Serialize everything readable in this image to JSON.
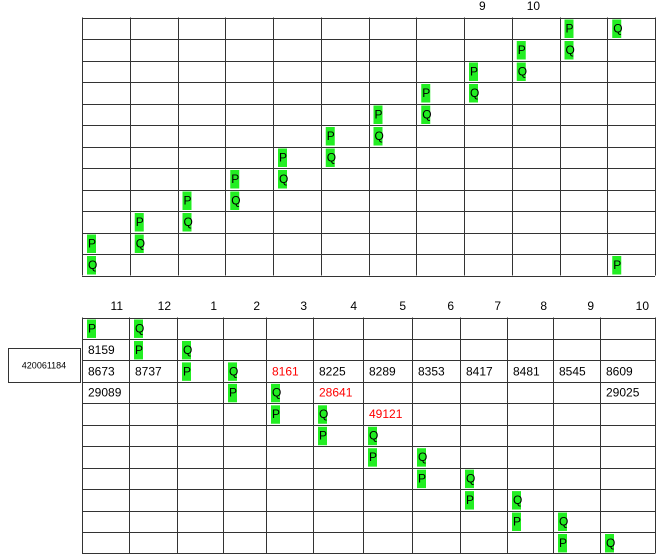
{
  "side_label": "420061184",
  "highlight_color": "#22ee22",
  "top": {
    "header": [
      null,
      null,
      null,
      null,
      null,
      null,
      null,
      null,
      "9",
      "10",
      null,
      null
    ],
    "rows": [
      [
        null,
        null,
        null,
        null,
        null,
        null,
        null,
        null,
        null,
        null,
        {
          "text": "P",
          "hl": true
        },
        {
          "text": "Q",
          "hl": true
        }
      ],
      [
        null,
        null,
        null,
        null,
        null,
        null,
        null,
        null,
        null,
        {
          "text": "P",
          "hl": true
        },
        {
          "text": "Q",
          "hl": true
        },
        null
      ],
      [
        null,
        null,
        null,
        null,
        null,
        null,
        null,
        null,
        {
          "text": "P",
          "hl": true
        },
        {
          "text": "Q",
          "hl": true
        },
        null,
        null
      ],
      [
        null,
        null,
        null,
        null,
        null,
        null,
        null,
        {
          "text": "P",
          "hl": true
        },
        {
          "text": "Q",
          "hl": true
        },
        null,
        null,
        null
      ],
      [
        null,
        null,
        null,
        null,
        null,
        null,
        {
          "text": "P",
          "hl": true
        },
        {
          "text": "Q",
          "hl": true
        },
        null,
        null,
        null,
        null
      ],
      [
        null,
        null,
        null,
        null,
        null,
        {
          "text": "P",
          "hl": true
        },
        {
          "text": "Q",
          "hl": true
        },
        null,
        null,
        null,
        null,
        null
      ],
      [
        null,
        null,
        null,
        null,
        {
          "text": "P",
          "hl": true
        },
        {
          "text": "Q",
          "hl": true
        },
        null,
        null,
        null,
        null,
        null,
        null
      ],
      [
        null,
        null,
        null,
        {
          "text": "P",
          "hl": true
        },
        {
          "text": "Q",
          "hl": true
        },
        null,
        null,
        null,
        null,
        null,
        null,
        null
      ],
      [
        null,
        null,
        {
          "text": "P",
          "hl": true
        },
        {
          "text": "Q",
          "hl": true
        },
        null,
        null,
        null,
        null,
        null,
        null,
        null,
        null
      ],
      [
        null,
        {
          "text": "P",
          "hl": true
        },
        {
          "text": "Q",
          "hl": true
        },
        null,
        null,
        null,
        null,
        null,
        null,
        null,
        null,
        null
      ],
      [
        {
          "text": "P",
          "hl": true
        },
        {
          "text": "Q",
          "hl": true
        },
        null,
        null,
        null,
        null,
        null,
        null,
        null,
        null,
        null,
        null
      ],
      [
        {
          "text": "Q",
          "hl": true
        },
        null,
        null,
        null,
        null,
        null,
        null,
        null,
        null,
        null,
        null,
        {
          "text": "P",
          "hl": true
        }
      ]
    ]
  },
  "bottom": {
    "header": [
      "11",
      "12",
      "1",
      "2",
      "3",
      "4",
      "5",
      "6",
      "7",
      "8",
      "9",
      "10"
    ],
    "rows": [
      [
        {
          "text": "P",
          "hl": true
        },
        {
          "text": "Q",
          "hl": true
        },
        null,
        null,
        null,
        null,
        null,
        null,
        null,
        null,
        null,
        null
      ],
      [
        {
          "text": "8159"
        },
        {
          "text": "P",
          "hl": true
        },
        {
          "text": "Q",
          "hl": true
        },
        null,
        null,
        null,
        null,
        null,
        null,
        null,
        null,
        null
      ],
      [
        {
          "text": "8673"
        },
        {
          "text": "8737"
        },
        {
          "text": "P",
          "hl": true
        },
        {
          "text": "Q",
          "hl": true
        },
        {
          "text": "8161",
          "color": "#ff0000"
        },
        {
          "text": "8225"
        },
        {
          "text": "8289"
        },
        {
          "text": "8353"
        },
        {
          "text": "8417"
        },
        {
          "text": "8481"
        },
        {
          "text": "8545"
        },
        {
          "text": "8609"
        }
      ],
      [
        {
          "text": "29089"
        },
        null,
        null,
        {
          "text": "P",
          "hl": true
        },
        {
          "text": "Q",
          "hl": true
        },
        {
          "text": "28641",
          "color": "#ff0000"
        },
        null,
        null,
        null,
        null,
        null,
        {
          "text": "29025"
        }
      ],
      [
        null,
        null,
        null,
        null,
        {
          "text": "P",
          "hl": true
        },
        {
          "text": "Q",
          "hl": true
        },
        {
          "text": "49121",
          "color": "#ff0000"
        },
        null,
        null,
        null,
        null,
        null
      ],
      [
        null,
        null,
        null,
        null,
        null,
        {
          "text": "P",
          "hl": true
        },
        {
          "text": "Q",
          "hl": true
        },
        null,
        null,
        null,
        null,
        null
      ],
      [
        null,
        null,
        null,
        null,
        null,
        null,
        {
          "text": "P",
          "hl": true
        },
        {
          "text": "Q",
          "hl": true
        },
        null,
        null,
        null,
        null
      ],
      [
        null,
        null,
        null,
        null,
        null,
        null,
        null,
        {
          "text": "P",
          "hl": true
        },
        {
          "text": "Q",
          "hl": true
        },
        null,
        null,
        null
      ],
      [
        null,
        null,
        null,
        null,
        null,
        null,
        null,
        null,
        {
          "text": "P",
          "hl": true
        },
        {
          "text": "Q",
          "hl": true
        },
        null,
        null
      ],
      [
        null,
        null,
        null,
        null,
        null,
        null,
        null,
        null,
        null,
        {
          "text": "P",
          "hl": true
        },
        {
          "text": "Q",
          "hl": true
        },
        null
      ],
      [
        null,
        null,
        null,
        null,
        null,
        null,
        null,
        null,
        null,
        null,
        {
          "text": "P",
          "hl": true
        },
        {
          "text": "Q",
          "hl": true
        }
      ]
    ]
  }
}
